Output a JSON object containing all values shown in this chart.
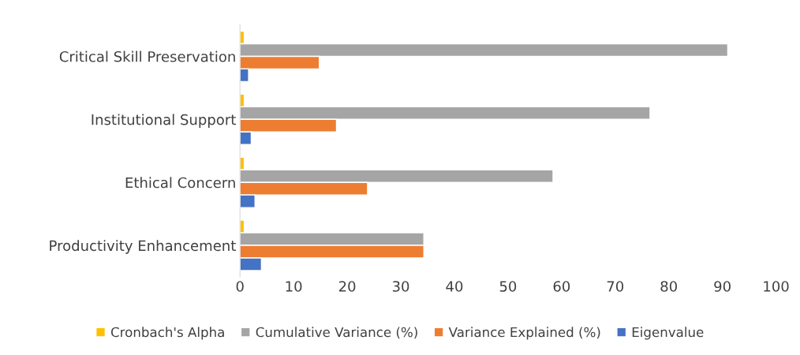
{
  "chart_data": {
    "type": "bar",
    "orientation": "horizontal",
    "categories": [
      "Critical Skill Preservation",
      "Institutional Support",
      "Ethical Concern",
      "Productivity Enhancement"
    ],
    "series": [
      {
        "name": "Cronbach's Alpha",
        "color": "#ffc000",
        "values": [
          0.8,
          0.8,
          0.8,
          0.8
        ]
      },
      {
        "name": "Cumulative Variance (%)",
        "color": "#a5a5a5",
        "values": [
          91.0,
          76.5,
          58.4,
          34.3
        ]
      },
      {
        "name": "Variance Explained (%)",
        "color": "#ed7d31",
        "values": [
          14.8,
          18.0,
          23.8,
          34.3
        ]
      },
      {
        "name": "Eigenvalue",
        "color": "#4472c4",
        "values": [
          1.6,
          2.1,
          2.8,
          4.0
        ]
      }
    ],
    "xlim": [
      0,
      100
    ],
    "xticks": [
      0,
      10,
      20,
      30,
      40,
      50,
      60,
      70,
      80,
      90,
      100
    ],
    "grid": false,
    "legend": "bottom"
  }
}
